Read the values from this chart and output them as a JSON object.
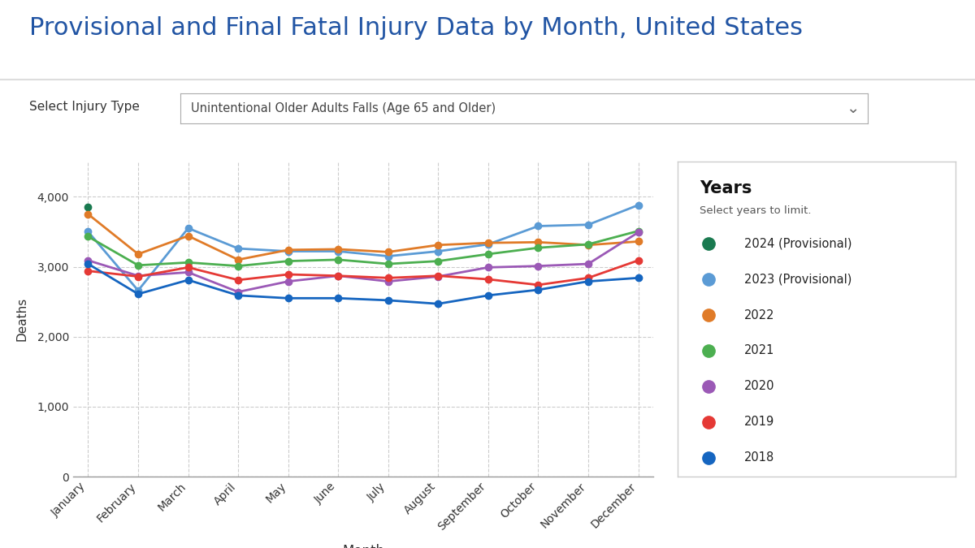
{
  "title": "Provisional and Final Fatal Injury Data by Month, United States",
  "subtitle_label": "Select Injury Type",
  "subtitle_value": "Unintentional Older Adults Falls (Age 65 and Older)",
  "xlabel": "Month",
  "ylabel": "Deaths",
  "months": [
    "January",
    "February",
    "March",
    "April",
    "May",
    "June",
    "July",
    "August",
    "September",
    "October",
    "November",
    "December"
  ],
  "ylim": [
    0,
    4500
  ],
  "yticks": [
    0,
    1000,
    2000,
    3000,
    4000
  ],
  "series": [
    {
      "label": "2024 (Provisional)",
      "color": "#1a7a50",
      "data": [
        3850,
        null,
        null,
        null,
        null,
        null,
        null,
        null,
        null,
        null,
        null,
        null
      ]
    },
    {
      "label": "2023 (Provisional)",
      "color": "#5b9bd5",
      "data": [
        3500,
        2660,
        3550,
        3260,
        3220,
        3220,
        3150,
        3220,
        3320,
        3580,
        3600,
        3880
      ]
    },
    {
      "label": "2022",
      "color": "#e07b28",
      "data": [
        3750,
        3180,
        3440,
        3100,
        3240,
        3250,
        3210,
        3310,
        3340,
        3350,
        3310,
        3360
      ]
    },
    {
      "label": "2021",
      "color": "#4caf50",
      "data": [
        3430,
        3020,
        3060,
        3010,
        3080,
        3100,
        3040,
        3080,
        3180,
        3270,
        3320,
        3510
      ]
    },
    {
      "label": "2020",
      "color": "#9b59b6",
      "data": [
        3090,
        2870,
        2920,
        2640,
        2790,
        2870,
        2790,
        2860,
        2990,
        3010,
        3040,
        3490
      ]
    },
    {
      "label": "2019",
      "color": "#e53935",
      "data": [
        2940,
        2860,
        2990,
        2810,
        2890,
        2870,
        2840,
        2870,
        2820,
        2740,
        2840,
        3090
      ]
    },
    {
      "label": "2018",
      "color": "#1565c0",
      "data": [
        3040,
        2610,
        2810,
        2590,
        2550,
        2550,
        2520,
        2470,
        2590,
        2670,
        2790,
        2840
      ]
    }
  ],
  "legend_title": "Years",
  "legend_subtitle": "Select years to limit.",
  "background_color": "#ffffff",
  "plot_bg_color": "#ffffff",
  "grid_color": "#cccccc",
  "title_color": "#2255a4",
  "axis_label_color": "#333333"
}
